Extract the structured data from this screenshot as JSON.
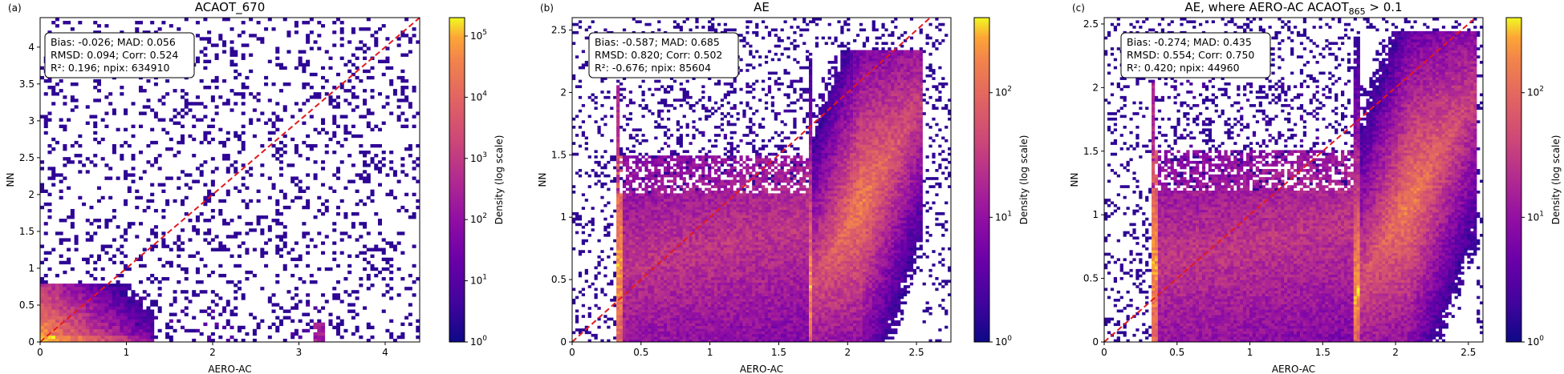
{
  "chart_data": [
    {
      "type": "heatmap",
      "panel_label": "(a)",
      "title": "ACAOT_670",
      "xlabel": "AERO-AC",
      "ylabel": "NN",
      "xlim": [
        0,
        4.4
      ],
      "ylim": [
        0,
        4.4
      ],
      "xticks": [
        "0",
        "1",
        "2",
        "3",
        "4"
      ],
      "yticks": [
        "0",
        "0.5",
        "1",
        "1.5",
        "2",
        "2.5",
        "3",
        "3.5",
        "4"
      ],
      "colorbar": {
        "label": "Density (log scale)",
        "scale": "log",
        "range": [
          1,
          200000
        ],
        "ticks": [
          "10^0",
          "10^1",
          "10^2",
          "10^3",
          "10^4",
          "10^5"
        ]
      },
      "stats": [
        "Bias: -0.026;   MAD: 0.056",
        "RMSD: 0.094;   Corr: 0.524",
        "R²: 0.196;   npix: 634910"
      ],
      "reference_line": "1:1",
      "colormap": "plasma",
      "line_color": "#e31a1c"
    },
    {
      "type": "heatmap",
      "panel_label": "(b)",
      "title": "AE",
      "xlabel": "AERO-AC",
      "ylabel": "NN",
      "xlim": [
        0,
        2.75
      ],
      "ylim": [
        0,
        2.6
      ],
      "xticks": [
        "0",
        "0.5",
        "1",
        "1.5",
        "2",
        "2.5"
      ],
      "yticks": [
        "0",
        "0.5",
        "1",
        "1.5",
        "2",
        "2.5"
      ],
      "colorbar": {
        "label": "Density (log scale)",
        "scale": "log",
        "range": [
          1,
          400
        ],
        "ticks": [
          "10^0",
          "10^1",
          "10^2"
        ]
      },
      "stats": [
        "Bias: -0.587;   MAD: 0.685",
        "RMSD: 0.820;   Corr: 0.502",
        "R²: -0.676;   npix: 85604"
      ],
      "reference_line": "1:1",
      "colormap": "plasma",
      "line_color": "#e31a1c"
    },
    {
      "type": "heatmap",
      "panel_label": "(c)",
      "title_main": "AE, where AERO-AC ACAOT",
      "title_sub": "865",
      "title_tail": " > 0.1",
      "xlabel": "AERO-AC",
      "ylabel": "NN",
      "xlim": [
        0,
        2.6
      ],
      "ylim": [
        0,
        2.55
      ],
      "xticks": [
        "0",
        "0.5",
        "1",
        "1.5",
        "2",
        "2.5"
      ],
      "yticks": [
        "0",
        "0.5",
        "1",
        "1.5",
        "2",
        "2.5"
      ],
      "colorbar": {
        "label": "Density (log scale)",
        "scale": "log",
        "range": [
          1,
          400
        ],
        "ticks": [
          "10^0",
          "10^1",
          "10^2"
        ]
      },
      "stats": [
        "Bias: -0.274;   MAD: 0.435",
        "RMSD: 0.554;   Corr: 0.750",
        "R²: 0.420;   npix: 44960"
      ],
      "reference_line": "1:1",
      "colormap": "plasma",
      "line_color": "#e31a1c"
    }
  ]
}
